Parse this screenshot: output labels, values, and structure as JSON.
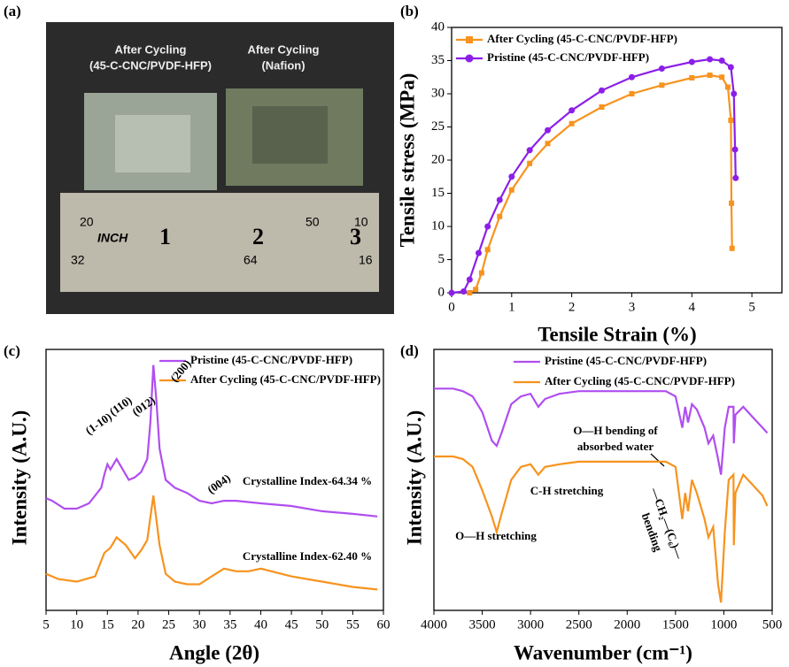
{
  "panel_labels": [
    "(a)",
    "(b)",
    "(c)",
    "(d)"
  ],
  "photo": {
    "labels": [
      "After Cycling",
      "(45-C-CNC/PVDF-HFP)",
      "After Cycling",
      "(Nafion)"
    ],
    "ruler": [
      "20",
      "50",
      "10",
      "INCH",
      "1",
      "2",
      "3",
      "32",
      "64",
      "16"
    ]
  },
  "chart_data": [
    {
      "type": "line",
      "xlabel": "Tensile Strain (%)",
      "ylabel": "Tensile stress (MPa)",
      "xlim": [
        0,
        5.5
      ],
      "xticks": [
        0,
        1,
        2,
        3,
        4,
        5
      ],
      "ylim": [
        0,
        40
      ],
      "yticks": [
        0,
        5,
        10,
        15,
        20,
        25,
        30,
        35,
        40
      ],
      "legend": "upper left",
      "markers": true,
      "series": [
        {
          "name": "After Cycling (45-C-CNC/PVDF-HFP)",
          "color": "#f7931e",
          "marker": "square",
          "x": [
            0.3,
            0.4,
            0.5,
            0.6,
            0.8,
            1,
            1.3,
            1.6,
            2,
            2.5,
            3,
            3.5,
            4,
            4.3,
            4.5,
            4.6,
            4.65,
            4.66,
            4.67
          ],
          "values": [
            0,
            0.5,
            3,
            6.5,
            11.5,
            15.5,
            19.5,
            22.5,
            25.5,
            28,
            30,
            31.3,
            32.4,
            32.8,
            32.5,
            31,
            26,
            13.5,
            6.7
          ]
        },
        {
          "name": "Pristine (45-C-CNC/PVDF-HFP)",
          "color": "#8b1fe8",
          "marker": "circle",
          "x": [
            0,
            0.2,
            0.3,
            0.45,
            0.6,
            0.8,
            1,
            1.3,
            1.6,
            2,
            2.5,
            3,
            3.5,
            4,
            4.3,
            4.5,
            4.65,
            4.7,
            4.72,
            4.73
          ],
          "values": [
            0,
            0.2,
            2,
            6,
            10,
            14,
            17.5,
            21.5,
            24.5,
            27.5,
            30.5,
            32.5,
            33.8,
            34.8,
            35.2,
            35,
            34,
            30,
            21.6,
            17.3
          ]
        }
      ]
    },
    {
      "type": "line",
      "xlabel": "Angle (2θ)",
      "ylabel": "Intensity (A.U.)",
      "xlim": [
        5,
        60
      ],
      "xticks": [
        5,
        10,
        15,
        20,
        25,
        30,
        35,
        40,
        45,
        50,
        55,
        60
      ],
      "ylim": [
        0,
        100
      ],
      "legend": "upper right",
      "markers": false,
      "annotations": [
        "(1-10)",
        "(110)",
        "(012)",
        "(200)",
        "(004)",
        "Crystalline Index-64.34 %",
        "Crystalline Index-62.40 %"
      ],
      "series": [
        {
          "name": "Pristine (45-C-CNC/PVDF-HFP)",
          "color": "#b04ef0",
          "x": [
            5,
            6,
            8,
            10,
            12,
            14,
            14.5,
            15,
            15.5,
            16.5,
            17.5,
            18.5,
            19.5,
            20.5,
            21.5,
            22,
            22.5,
            23,
            23.5,
            24.5,
            26,
            28,
            30,
            32,
            34,
            36,
            40,
            45,
            50,
            55,
            59
          ],
          "values": [
            43,
            42,
            39,
            39,
            41,
            47,
            52,
            56,
            54,
            58,
            54,
            50,
            51,
            53,
            58,
            72,
            94,
            80,
            62,
            50,
            47,
            45,
            42,
            41,
            42,
            42,
            41,
            40,
            38,
            37,
            36
          ]
        },
        {
          "name": "After Cycling (45-C-CNC/PVDF-HFP)",
          "color": "#f7931e",
          "x": [
            5,
            7,
            10,
            13,
            14.5,
            15.5,
            16.5,
            18,
            19.5,
            20.5,
            21.5,
            22.5,
            23.5,
            24.5,
            26,
            28,
            30,
            32,
            34,
            36,
            38,
            40,
            45,
            50,
            55,
            59
          ],
          "values": [
            14,
            12,
            11,
            13,
            22,
            24,
            28,
            25,
            20,
            23,
            27,
            44,
            25,
            14,
            11,
            10,
            10,
            13,
            16,
            15,
            15,
            16,
            13,
            11,
            9,
            8
          ]
        }
      ]
    },
    {
      "type": "line",
      "xlabel": "Wavenumber (cm⁻¹)",
      "ylabel": "Intensity (A.U.)",
      "xlim": [
        4000,
        500
      ],
      "xticks": [
        4000,
        3500,
        3000,
        2500,
        2000,
        1500,
        1000,
        500
      ],
      "ylim": [
        0,
        100
      ],
      "legend": "upper center",
      "markers": false,
      "annotations": [
        "O—H bending of",
        "absorbed water",
        "C-H stretching",
        "O—H stretching",
        "—CH₂—(C₆)—",
        "bending"
      ],
      "series": [
        {
          "name": "Pristine (45-C-CNC/PVDF-HFP)",
          "color": "#b04ef0",
          "x": [
            4000,
            3800,
            3700,
            3600,
            3500,
            3400,
            3350,
            3300,
            3200,
            3100,
            3000,
            2920,
            2850,
            2700,
            2500,
            2000,
            1700,
            1600,
            1500,
            1430,
            1400,
            1370,
            1330,
            1280,
            1200,
            1160,
            1110,
            1060,
            1030,
            990,
            950,
            900,
            897,
            880,
            800,
            700,
            600,
            550
          ],
          "values": [
            85,
            85,
            84,
            82,
            76,
            65,
            63,
            68,
            79,
            82,
            83,
            78,
            81,
            83,
            84,
            84,
            84,
            84,
            82,
            70,
            78,
            72,
            79,
            77,
            70,
            64,
            67,
            58,
            52,
            70,
            78,
            78,
            64,
            75,
            78,
            74,
            70,
            68
          ]
        },
        {
          "name": "After Cycling (45-C-CNC/PVDF-HFP)",
          "color": "#f7931e",
          "x": [
            4000,
            3800,
            3700,
            3600,
            3500,
            3400,
            3350,
            3300,
            3200,
            3100,
            3000,
            2920,
            2850,
            2700,
            2500,
            2000,
            1700,
            1600,
            1500,
            1430,
            1400,
            1370,
            1330,
            1280,
            1200,
            1160,
            1110,
            1060,
            1030,
            990,
            950,
            900,
            897,
            880,
            800,
            700,
            600,
            550
          ],
          "values": [
            59,
            59,
            58,
            55,
            46,
            36,
            30,
            37,
            50,
            55,
            56,
            52,
            55,
            56,
            57,
            57,
            57,
            57,
            55,
            35,
            45,
            38,
            50,
            45,
            35,
            28,
            32,
            10,
            3,
            30,
            50,
            52,
            25,
            45,
            52,
            48,
            44,
            40
          ]
        }
      ]
    }
  ]
}
